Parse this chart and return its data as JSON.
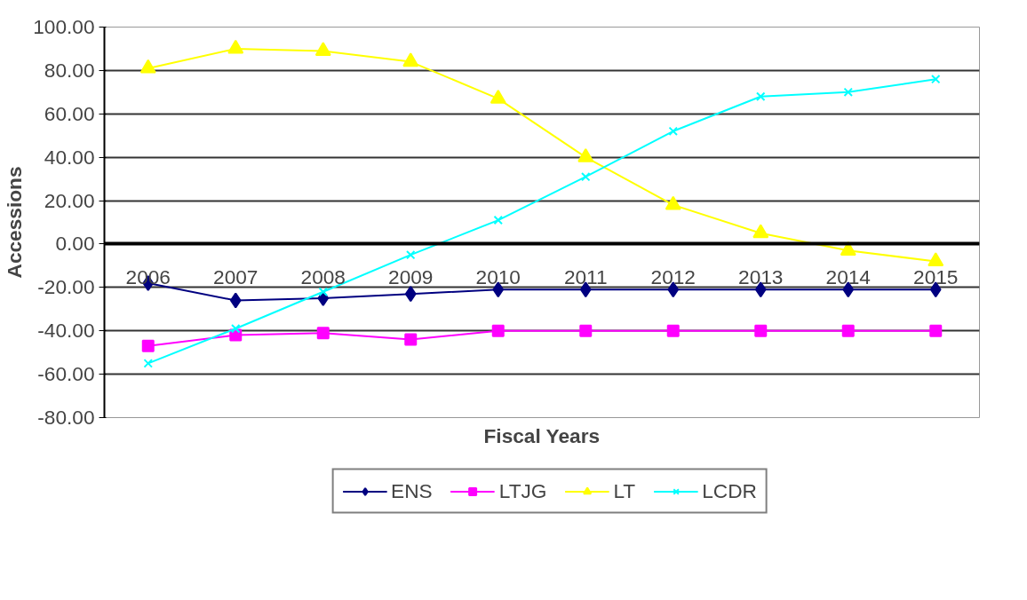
{
  "chart_data": {
    "type": "line",
    "xlabel": "Fiscal Years",
    "ylabel": "Accessions",
    "categories": [
      "2006",
      "2007",
      "2008",
      "2009",
      "2010",
      "2011",
      "2012",
      "2013",
      "2014",
      "2015"
    ],
    "series": [
      {
        "name": "ENS",
        "color": "#000080",
        "marker": "diamond",
        "values": [
          -18,
          -26,
          -25,
          -23,
          -21,
          -21,
          -21,
          -21,
          -21,
          -21
        ]
      },
      {
        "name": "LTJG",
        "color": "#ff00ff",
        "marker": "square",
        "values": [
          -47,
          -42,
          -41,
          -44,
          -40,
          -40,
          -40,
          -40,
          -40,
          -40
        ]
      },
      {
        "name": "LT",
        "color": "#ffff00",
        "marker": "triangle",
        "values": [
          81,
          90,
          89,
          84,
          67,
          40,
          18,
          5,
          -3,
          -8
        ]
      },
      {
        "name": "LCDR",
        "color": "#00ffff",
        "marker": "cross",
        "values": [
          -55,
          -39,
          -22,
          -5,
          11,
          31,
          52,
          68,
          70,
          76
        ]
      }
    ],
    "ylim": [
      -80,
      100
    ],
    "yticks": [
      {
        "value": -80,
        "label": "-80.00"
      },
      {
        "value": -60,
        "label": "-60.00"
      },
      {
        "value": -40,
        "label": "-40.00"
      },
      {
        "value": -20,
        "label": "-20.00"
      },
      {
        "value": 0,
        "label": "0.00"
      },
      {
        "value": 20,
        "label": "20.00"
      },
      {
        "value": 40,
        "label": "40.00"
      },
      {
        "value": 60,
        "label": "60.00"
      },
      {
        "value": 80,
        "label": "80.00"
      },
      {
        "value": 100,
        "label": "100.00"
      }
    ],
    "grid": "y",
    "legend": "bottom"
  }
}
